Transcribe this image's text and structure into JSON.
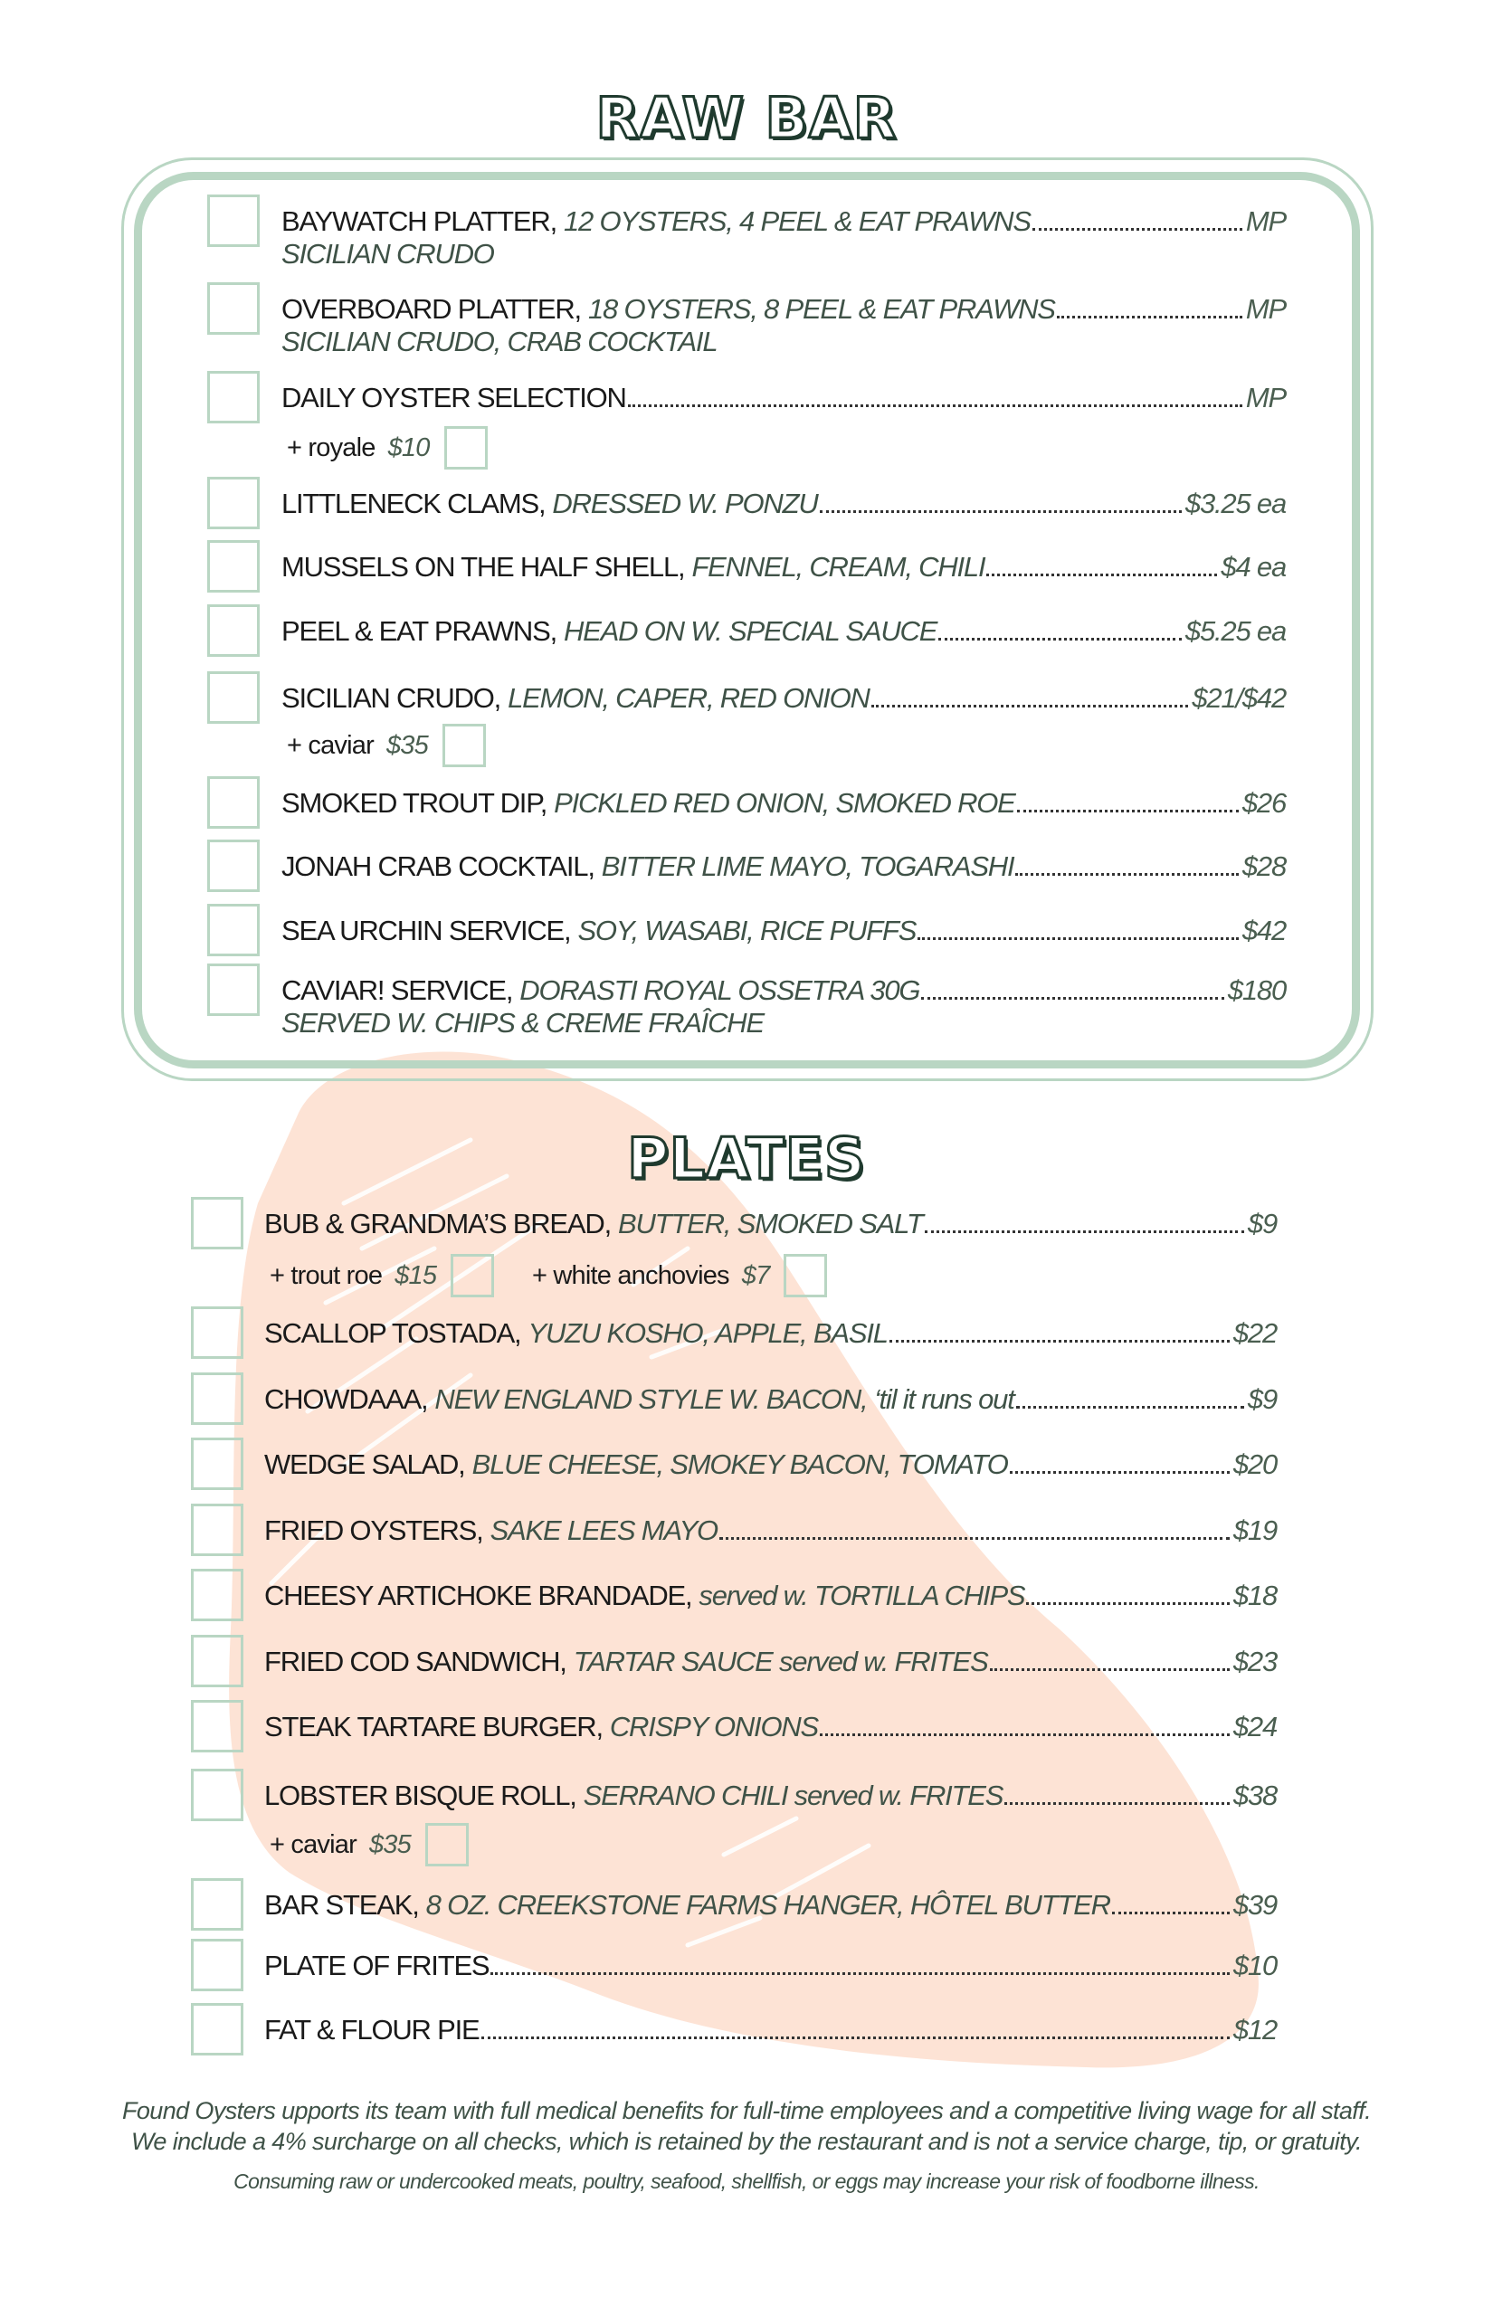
{
  "colors": {
    "accent_green": "#b9d6c3",
    "title_green": "#1f3a2e",
    "peach": "#fde3d5",
    "price": "#4a5e50"
  },
  "raw_bar": {
    "title": "RAW BAR",
    "items": [
      {
        "name": "BAYWATCH PLATTER,",
        "desc": "12 OYSTERS, 4 PEEL & EAT PRAWNS",
        "price": "MP",
        "sub": "SICILIAN CRUDO"
      },
      {
        "name": "OVERBOARD PLATTER,",
        "desc": "18 OYSTERS, 8 PEEL & EAT PRAWNS",
        "price": "MP",
        "sub": "SICILIAN CRUDO, CRAB COCKTAIL"
      },
      {
        "name": "DAILY OYSTER SELECTION",
        "desc": "",
        "price": "MP",
        "addons": [
          {
            "label": "+ royale",
            "price": "$10"
          }
        ]
      },
      {
        "name": "LITTLENECK CLAMS,",
        "desc": " DRESSED W. PONZU",
        "price": "$3.25 ea"
      },
      {
        "name": "MUSSELS ON THE HALF SHELL,",
        "desc": "FENNEL, CREAM, CHILI",
        "price": "$4 ea"
      },
      {
        "name": "PEEL & EAT PRAWNS,",
        "desc": "HEAD ON W. SPECIAL SAUCE",
        "price": "$5.25 ea"
      },
      {
        "name": "SICILIAN CRUDO,",
        "desc": "LEMON, CAPER, RED ONION",
        "price": "$21/$42",
        "addons": [
          {
            "label": "+ caviar",
            "price": "$35"
          }
        ]
      },
      {
        "name": "SMOKED TROUT DIP,",
        "desc": "PICKLED RED ONION, SMOKED ROE",
        "price": "$26"
      },
      {
        "name": "JONAH CRAB COCKTAIL,",
        "desc": "BITTER LIME MAYO, TOGARASHI",
        "price": "$28"
      },
      {
        "name": "SEA URCHIN SERVICE,",
        "desc": "SOY, WASABI, RICE PUFFS",
        "price": "$42"
      },
      {
        "name": "CAVIAR! SERVICE,",
        "desc": "DORASTI ROYAL OSSETRA 30G",
        "price": "$180",
        "sub": "SERVED W. CHIPS & CREME FRAÎCHE"
      }
    ]
  },
  "plates": {
    "title": "PLATES",
    "items": [
      {
        "name": "BUB & GRANDMA’S BREAD,",
        "desc": "BUTTER, SMOKED SALT",
        "price": "$9",
        "addons": [
          {
            "label": "+ trout roe",
            "price": "$15"
          },
          {
            "label": "+ white anchovies",
            "price": "$7"
          }
        ]
      },
      {
        "name": "SCALLOP TOSTADA,",
        "desc": "YUZU KOSHO, APPLE, BASIL",
        "price": "$22"
      },
      {
        "name": "CHOWDAAA,",
        "desc": " NEW ENGLAND STYLE W. BACON, ‘til it runs out",
        "price": "$9"
      },
      {
        "name": "WEDGE SALAD,",
        "desc": "BLUE CHEESE, SMOKEY BACON, TOMATO",
        "price": "$20"
      },
      {
        "name": "FRIED OYSTERS,",
        "desc": "SAKE LEES MAYO",
        "price": "$19"
      },
      {
        "name": "CHEESY ARTICHOKE BRANDADE,",
        "desc": "served w. TORTILLA CHIPS",
        "price": "$18"
      },
      {
        "name": "FRIED COD SANDWICH,",
        "desc": "TARTAR SAUCE served w. FRITES",
        "price": "$23"
      },
      {
        "name": "STEAK TARTARE BURGER,",
        "desc": "CRISPY ONIONS",
        "price": "$24"
      },
      {
        "name": "LOBSTER BISQUE ROLL,",
        "desc": "SERRANO CHILI served w. FRITES",
        "price": "$38",
        "addons": [
          {
            "label": "+ caviar",
            "price": "$35"
          }
        ]
      },
      {
        "name": "BAR STEAK,",
        "desc": "8 OZ. CREEKSTONE FARMS HANGER, HÔTEL BUTTER",
        "price": "$39"
      },
      {
        "name": "PLATE OF FRITES",
        "desc": "",
        "price": "$10"
      },
      {
        "name": "FAT & FLOUR PIE",
        "desc": "",
        "price": "$12"
      }
    ]
  },
  "footer": {
    "line1": "Found Oysters upports its team with full medical benefits for full-time employees and a competitive living wage for all staff.",
    "line2": "We include a 4% surcharge on all checks, which is retained by the restaurant and is not a service charge, tip, or gratuity.",
    "line3": "Consuming raw or undercooked meats, poultry, seafood, shellfish, or eggs may increase your risk of foodborne illness."
  }
}
